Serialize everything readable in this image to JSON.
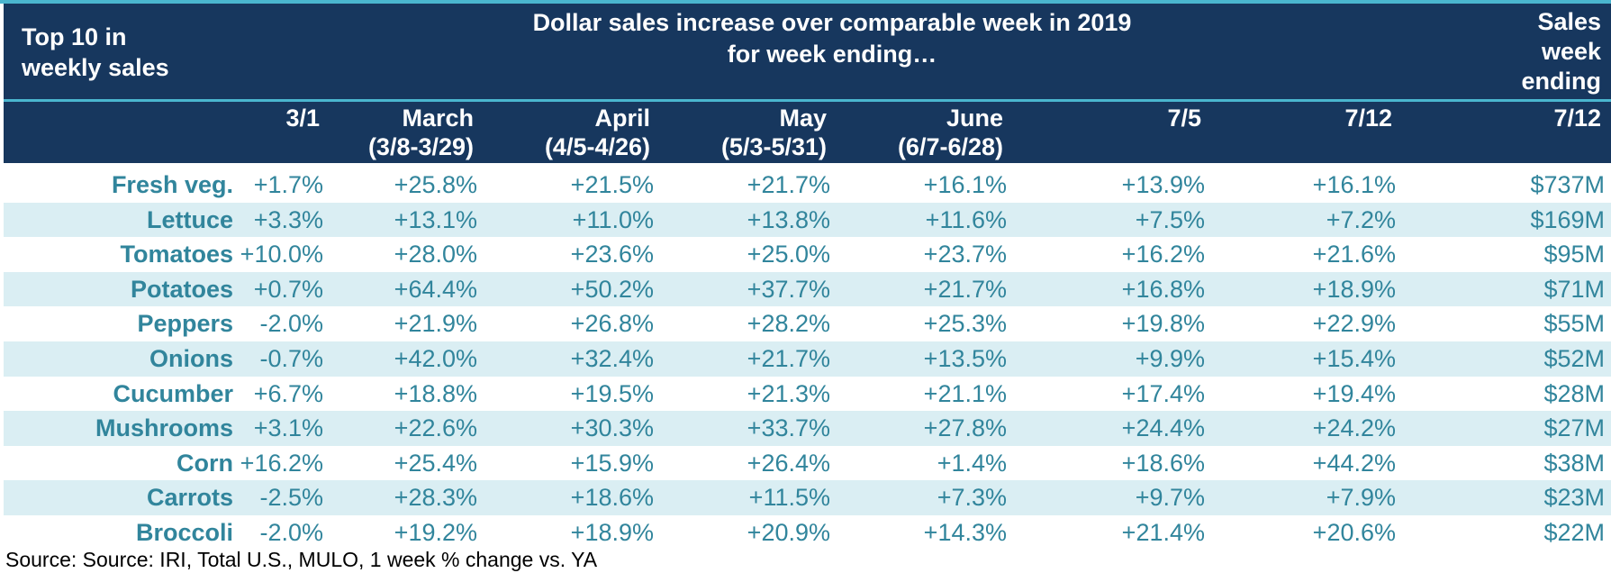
{
  "header": {
    "top10": "Top 10 in weekly sales",
    "main_line1": "Dollar sales increase over comparable week in 2019",
    "main_line2": "for week ending…",
    "sales": [
      "Sales",
      "week",
      "ending"
    ]
  },
  "columns": [
    {
      "line1": "",
      "line2": "3/1"
    },
    {
      "line1": "March",
      "line2": "(3/8-3/29)"
    },
    {
      "line1": "April",
      "line2": "(4/5-4/26)"
    },
    {
      "line1": "May",
      "line2": "(5/3-5/31)"
    },
    {
      "line1": "June",
      "line2": "(6/7-6/28)"
    },
    {
      "line1": "",
      "line2": "7/5"
    },
    {
      "line1": "",
      "line2": "7/12"
    },
    {
      "line1": "",
      "line2": "7/12"
    }
  ],
  "chart_data": {
    "type": "table",
    "title": "Dollar sales increase over comparable week in 2019 for week ending…",
    "columns": [
      "3/1",
      "March (3/8-3/29)",
      "April (4/5-4/26)",
      "May (5/3-5/31)",
      "June (6/7-6/28)",
      "7/5",
      "7/12",
      "Sales week ending 7/12"
    ],
    "rows": [
      {
        "label": "Fresh veg.",
        "values": [
          "+1.7%",
          "+25.8%",
          "+21.5%",
          "+21.7%",
          "+16.1%",
          "+13.9%",
          "+16.1%",
          "$737M"
        ]
      },
      {
        "label": "Lettuce",
        "values": [
          "+3.3%",
          "+13.1%",
          "+11.0%",
          "+13.8%",
          "+11.6%",
          "+7.5%",
          "+7.2%",
          "$169M"
        ]
      },
      {
        "label": "Tomatoes",
        "values": [
          "+10.0%",
          "+28.0%",
          "+23.6%",
          "+25.0%",
          "+23.7%",
          "+16.2%",
          "+21.6%",
          "$95M"
        ]
      },
      {
        "label": "Potatoes",
        "values": [
          "+0.7%",
          "+64.4%",
          "+50.2%",
          "+37.7%",
          "+21.7%",
          "+16.8%",
          "+18.9%",
          "$71M"
        ]
      },
      {
        "label": "Peppers",
        "values": [
          "-2.0%",
          "+21.9%",
          "+26.8%",
          "+28.2%",
          "+25.3%",
          "+19.8%",
          "+22.9%",
          "$55M"
        ]
      },
      {
        "label": "Onions",
        "values": [
          "-0.7%",
          "+42.0%",
          "+32.4%",
          "+21.7%",
          "+13.5%",
          "+9.9%",
          "+15.4%",
          "$52M"
        ]
      },
      {
        "label": "Cucumber",
        "values": [
          "+6.7%",
          "+18.8%",
          "+19.5%",
          "+21.3%",
          "+21.1%",
          "+17.4%",
          "+19.4%",
          "$28M"
        ]
      },
      {
        "label": "Mushrooms",
        "values": [
          "+3.1%",
          "+22.6%",
          "+30.3%",
          "+33.7%",
          "+27.8%",
          "+24.4%",
          "+24.2%",
          "$27M"
        ]
      },
      {
        "label": "Corn",
        "values": [
          "+16.2%",
          "+25.4%",
          "+15.9%",
          "+26.4%",
          "+1.4%",
          "+18.6%",
          "+44.2%",
          "$38M"
        ]
      },
      {
        "label": "Carrots",
        "values": [
          "-2.5%",
          "+28.3%",
          "+18.6%",
          "+11.5%",
          "+7.3%",
          "+9.7%",
          "+7.9%",
          "$23M"
        ]
      },
      {
        "label": "Broccoli",
        "values": [
          "-2.0%",
          "+19.2%",
          "+18.9%",
          "+20.9%",
          "+14.3%",
          "+21.4%",
          "+20.6%",
          "$22M"
        ]
      }
    ]
  },
  "source": "Source: Source: IRI, Total U.S., MULO, 1 week % change vs. YA",
  "colors": {
    "header_bg": "#17375e",
    "accent": "#4ab6cf",
    "band": "#daeef3",
    "value_text": "#31859c"
  }
}
